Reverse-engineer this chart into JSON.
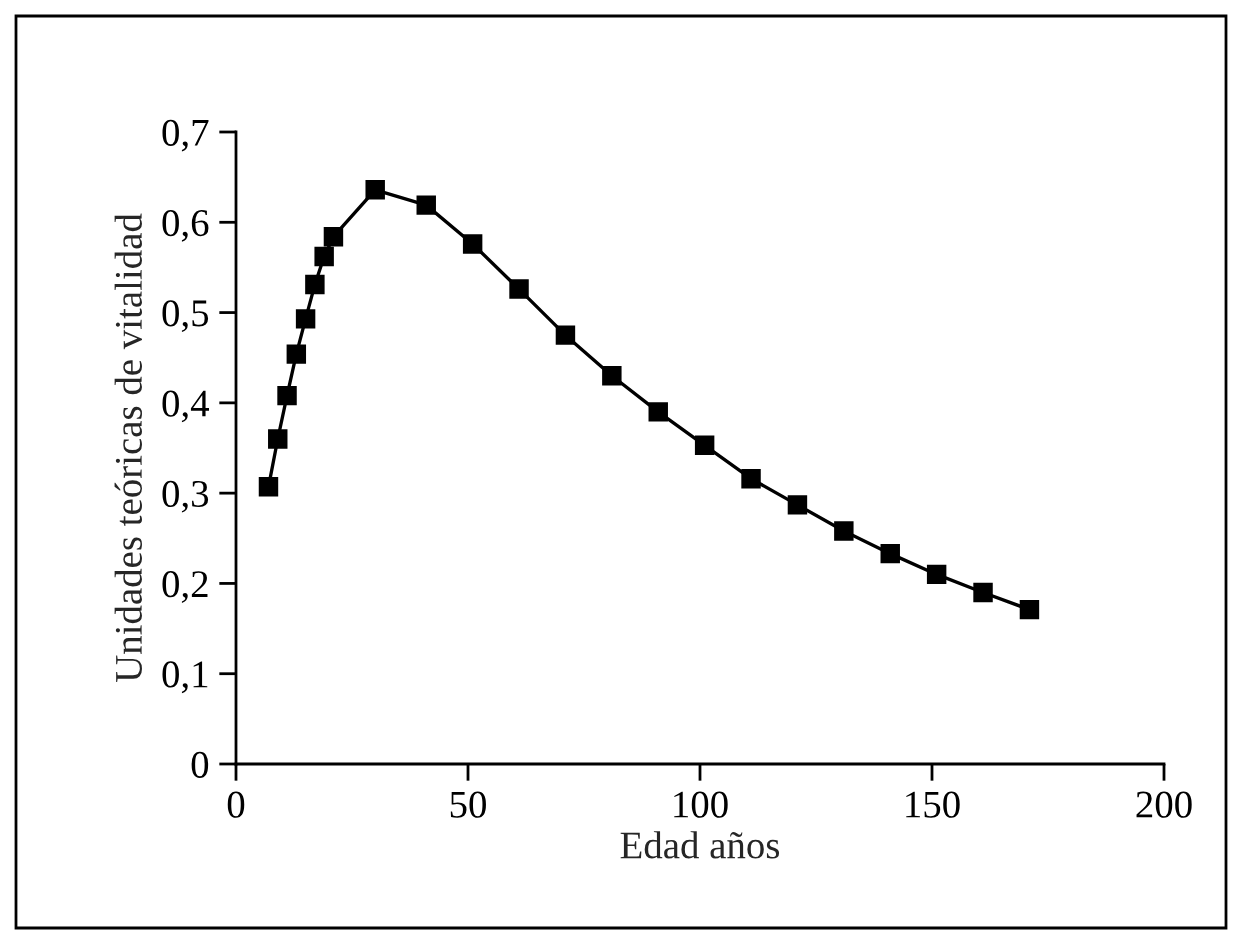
{
  "chart_data": {
    "type": "line",
    "xlabel": "Edad años",
    "ylabel": "Unidades teóricas de vitalidad",
    "x": [
      7,
      9,
      11,
      13,
      15,
      17,
      19,
      21,
      30,
      41,
      51,
      61,
      71,
      81,
      91,
      101,
      111,
      121,
      131,
      141,
      151,
      161,
      171
    ],
    "series": [
      {
        "color": "#000000",
        "values": [
          0.307,
          0.36,
          0.408,
          0.454,
          0.493,
          0.531,
          0.562,
          0.584,
          0.636,
          0.619,
          0.576,
          0.526,
          0.475,
          0.43,
          0.39,
          0.353,
          0.316,
          0.287,
          0.258,
          0.233,
          0.21,
          0.19,
          0.171
        ]
      }
    ],
    "xlim": [
      0,
      200
    ],
    "xticks": [
      0,
      50,
      100,
      150,
      200
    ],
    "ylim": [
      0,
      0.7
    ],
    "yticks": [
      0,
      {
        "value": 0.1,
        "label": "0,1"
      },
      {
        "value": 0.2,
        "label": "0,2"
      },
      {
        "value": 0.3,
        "label": "0,3"
      },
      {
        "value": 0.4,
        "label": "0,4"
      },
      {
        "value": 0.5,
        "label": "0,5"
      },
      {
        "value": 0.6,
        "label": "0,6"
      },
      {
        "value": 0.7,
        "label": "0,7"
      }
    ],
    "marker": "square",
    "line_style": "solid",
    "grid": false
  }
}
